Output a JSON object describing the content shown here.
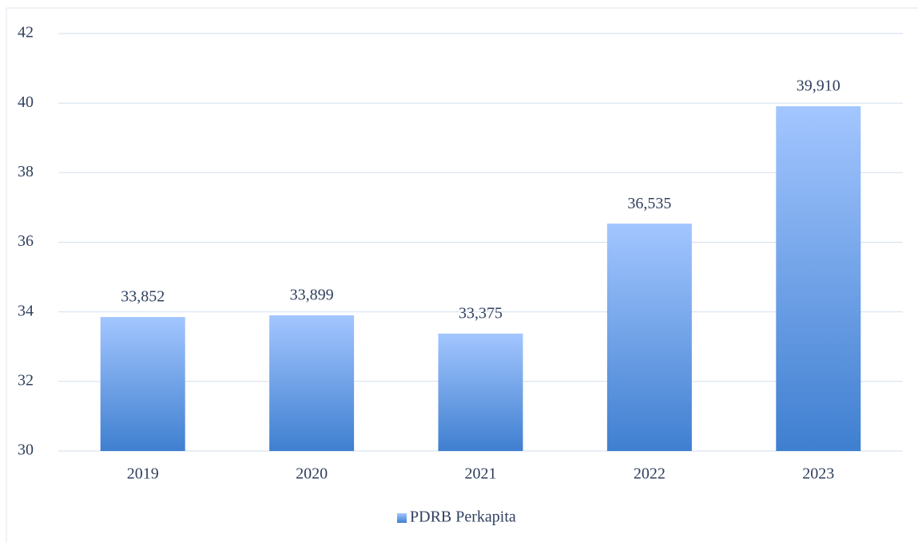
{
  "chart_data": {
    "type": "bar",
    "categories": [
      "2019",
      "2020",
      "2021",
      "2022",
      "2023"
    ],
    "series": [
      {
        "name": "PDRB Perkapita",
        "color": "#3f7fd0",
        "color_top": "#a3c6ff",
        "values": [
          33.852,
          33.899,
          33.375,
          36.535,
          39.91
        ],
        "value_labels": [
          "33,852",
          "33,899",
          "33,375",
          "36,535",
          "39,910"
        ]
      }
    ],
    "ylim": [
      30,
      42
    ],
    "yticks": [
      30,
      32,
      34,
      36,
      38,
      40,
      42
    ],
    "grid": true,
    "legend": "bottom"
  }
}
